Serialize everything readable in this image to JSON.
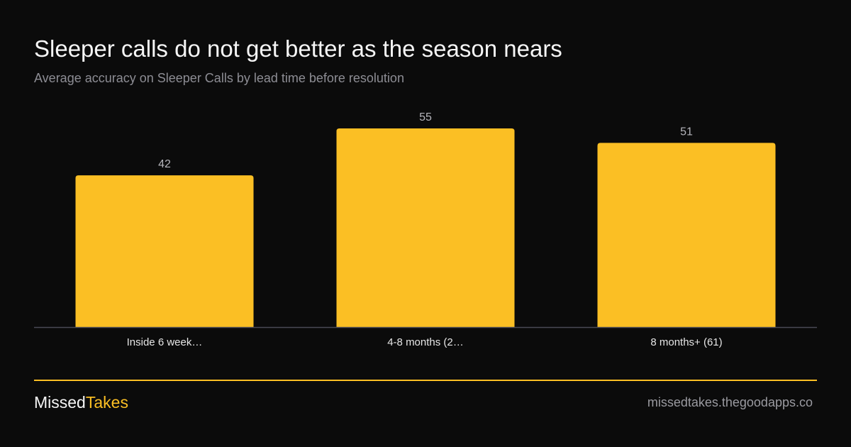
{
  "header": {
    "title": "Sleeper calls do not get better as the season nears",
    "subtitle": "Average accuracy on Sleeper Calls by lead time before resolution"
  },
  "chart_data": {
    "type": "bar",
    "categories": [
      "Inside 6 week…",
      "4-8 months (2…",
      "8 months+ (61)"
    ],
    "values": [
      42,
      55,
      51
    ],
    "data_labels": [
      "42",
      "55",
      "51"
    ],
    "ylim": [
      0,
      55
    ],
    "grid": false,
    "legend": "none",
    "colors": {
      "bar": "#fbbf24",
      "axis": "#4a4a55",
      "value_label": "#b5b5bb",
      "tick_label": "#e6e6e6"
    }
  },
  "footer": {
    "brand_part1": "Missed",
    "brand_part2": "Takes",
    "site": "missedtakes.thegoodapps.co",
    "accent": "#fbbf24"
  }
}
